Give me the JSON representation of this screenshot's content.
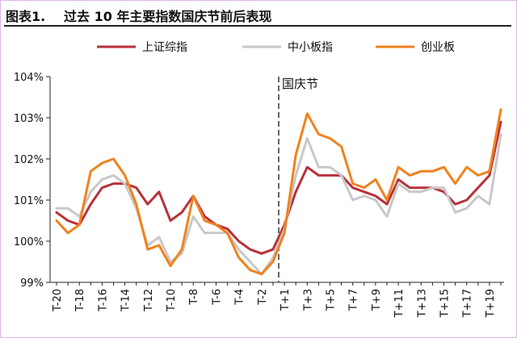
{
  "figure": {
    "label": "图表1.",
    "title": "过去 10 年主要指数国庆节前后表现"
  },
  "colors": {
    "series": [
      "#b8313b",
      "#c8c8c8",
      "#f0821e"
    ],
    "divider": "#666666"
  },
  "chart_data": {
    "type": "line",
    "title": "过去 10 年主要指数国庆节前后表现",
    "annotation": "国庆节",
    "y_unit": "%",
    "ylim": [
      99,
      104
    ],
    "yticks": [
      99,
      100,
      101,
      102,
      103,
      104
    ],
    "ytick_labels": [
      "99%",
      "100%",
      "101%",
      "102%",
      "103%",
      "104%"
    ],
    "grid": false,
    "legend_position": "top",
    "x": [
      "T-20",
      "T-19",
      "T-18",
      "T-17",
      "T-16",
      "T-15",
      "T-14",
      "T-13",
      "T-12",
      "T-11",
      "T-10",
      "T-9",
      "T-8",
      "T-7",
      "T-6",
      "T-5",
      "T-4",
      "T-3",
      "T-2",
      "T-1",
      "T+1",
      "T+2",
      "T+3",
      "T+4",
      "T+5",
      "T+6",
      "T+7",
      "T+8",
      "T+9",
      "T+10",
      "T+11",
      "T+12",
      "T+13",
      "T+14",
      "T+15",
      "T+16",
      "T+17",
      "T+18",
      "T+19",
      "T+20"
    ],
    "xtick_labels": [
      "T-20",
      "T-18",
      "T-16",
      "T-14",
      "T-12",
      "T-10",
      "T-8",
      "T-6",
      "T-4",
      "T-2",
      "T+1",
      "T+3",
      "T+5",
      "T+7",
      "T+9",
      "T+11",
      "T+13",
      "T+15",
      "T+17",
      "T+19"
    ],
    "divider_between": [
      "T-1",
      "T+1"
    ],
    "series": [
      {
        "name": "上证综指",
        "values": [
          100.7,
          100.5,
          100.4,
          100.9,
          101.3,
          101.4,
          101.4,
          101.3,
          100.9,
          101.2,
          100.5,
          100.7,
          101.1,
          100.6,
          100.4,
          100.3,
          100.0,
          99.8,
          99.7,
          99.8,
          100.4,
          101.2,
          101.8,
          101.6,
          101.6,
          101.6,
          101.3,
          101.2,
          101.1,
          100.9,
          101.5,
          101.3,
          101.3,
          101.3,
          101.2,
          100.9,
          101.0,
          101.3,
          101.6,
          102.9
        ]
      },
      {
        "name": "中小板指",
        "values": [
          100.8,
          100.8,
          100.6,
          101.2,
          101.5,
          101.6,
          101.4,
          100.8,
          99.9,
          100.1,
          99.5,
          99.7,
          100.6,
          100.2,
          100.2,
          100.2,
          99.8,
          99.5,
          99.2,
          99.6,
          100.3,
          101.6,
          102.5,
          101.8,
          101.8,
          101.6,
          101.0,
          101.1,
          101.0,
          100.6,
          101.4,
          101.2,
          101.2,
          101.3,
          101.3,
          100.7,
          100.8,
          101.1,
          100.9,
          102.6
        ]
      },
      {
        "name": "创业板",
        "values": [
          100.5,
          100.2,
          100.4,
          101.7,
          101.9,
          102.0,
          101.6,
          100.9,
          99.8,
          99.9,
          99.4,
          99.8,
          101.1,
          100.5,
          100.4,
          100.2,
          99.6,
          99.3,
          99.2,
          99.5,
          100.2,
          102.1,
          103.1,
          102.6,
          102.5,
          102.3,
          101.4,
          101.3,
          101.5,
          101.0,
          101.8,
          101.6,
          101.7,
          101.7,
          101.8,
          101.4,
          101.8,
          101.6,
          101.7,
          103.2
        ]
      }
    ]
  }
}
